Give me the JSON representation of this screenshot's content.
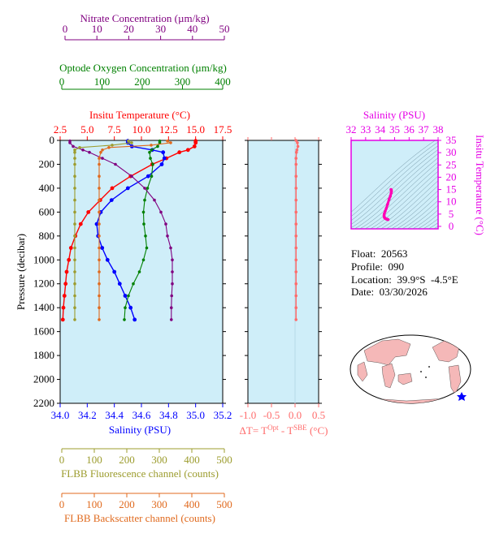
{
  "colors": {
    "temperature": "#ff0000",
    "salinity": "#0000ff",
    "oxygen": "#008000",
    "nitrate": "#800080",
    "fluorescence": "#9c9c2e",
    "backscatter": "#e06a1e",
    "delta_t": "#ff6b6b",
    "ts_curve": "#ff00b4",
    "ts_axis": "#e600e6",
    "plot_bg": "#cfeef9",
    "land": "#f5b8b8"
  },
  "float_info": {
    "float": "Float:  20563",
    "profile": "Profile:  090",
    "location": "Location:  39.9°S  -4.5°E",
    "date": "Date:  03/30/2026"
  },
  "chart_data": [
    {
      "type": "line",
      "panel": "main-profile",
      "ylabel": "Pressure (decibar)",
      "ylim": [
        2200,
        0
      ],
      "yticks": [
        0,
        200,
        400,
        600,
        800,
        1000,
        1200,
        1400,
        1600,
        1800,
        2000,
        2200
      ],
      "axes": {
        "nitrate": {
          "label": "Nitrate Concentration (µm/kg)",
          "lim": [
            0,
            50
          ],
          "ticks": [
            0,
            10,
            20,
            30,
            40,
            50
          ]
        },
        "oxygen": {
          "label": "Optode Oxygen Concentration (µm/kg)",
          "lim": [
            0,
            400
          ],
          "ticks": [
            0,
            100,
            200,
            300,
            400
          ]
        },
        "temperature": {
          "label": "Insitu Temperature (°C)",
          "lim": [
            2.5,
            17.5
          ],
          "ticks": [
            "2.5",
            "5.0",
            "7.5",
            "10.0",
            "12.5",
            "15.0",
            "17.5"
          ]
        },
        "salinity": {
          "label": "Salinity (PSU)",
          "lim": [
            34.0,
            35.2
          ],
          "ticks": [
            "34.0",
            "34.2",
            "34.4",
            "34.6",
            "34.8",
            "35.0",
            "35.2"
          ]
        },
        "fluorescence": {
          "label": "FLBB Fluorescence channel (counts)",
          "lim": [
            0,
            500
          ],
          "ticks": [
            0,
            100,
            200,
            300,
            400,
            500
          ]
        },
        "backscatter": {
          "label": "FLBB Backscatter channel (counts)",
          "lim": [
            0,
            500
          ],
          "ticks": [
            0,
            100,
            200,
            300,
            400,
            500
          ]
        }
      },
      "series": [
        {
          "name": "Insitu Temperature (°C)",
          "axis": "temperature",
          "pressure": [
            5,
            20,
            50,
            80,
            100,
            150,
            200,
            300,
            400,
            500,
            600,
            700,
            800,
            900,
            1000,
            1100,
            1200,
            1300,
            1400,
            1500
          ],
          "values": [
            15.0,
            15.0,
            14.9,
            14.3,
            13.5,
            12.3,
            11.0,
            9.0,
            7.3,
            6.2,
            5.1,
            4.4,
            3.9,
            3.5,
            3.3,
            3.1,
            3.0,
            2.9,
            2.8,
            2.75
          ]
        },
        {
          "name": "Salinity (PSU)",
          "axis": "salinity",
          "pressure": [
            5,
            20,
            50,
            80,
            100,
            150,
            200,
            300,
            400,
            500,
            600,
            700,
            800,
            900,
            1000,
            1100,
            1200,
            1300,
            1400,
            1500
          ],
          "values": [
            34.5,
            34.5,
            34.53,
            34.68,
            34.76,
            34.77,
            34.75,
            34.65,
            34.5,
            34.38,
            34.3,
            34.27,
            34.28,
            34.31,
            34.35,
            34.4,
            34.44,
            34.48,
            34.52,
            34.55
          ]
        },
        {
          "name": "Optode Oxygen Concentration (µm/kg)",
          "axis": "oxygen",
          "pressure": [
            5,
            20,
            50,
            80,
            100,
            150,
            200,
            300,
            400,
            500,
            600,
            700,
            800,
            900,
            1000,
            1100,
            1200,
            1300,
            1400,
            1500
          ],
          "values": [
            245,
            245,
            240,
            225,
            220,
            222,
            228,
            225,
            215,
            208,
            205,
            206,
            210,
            213,
            205,
            195,
            180,
            168,
            160,
            158
          ]
        },
        {
          "name": "Nitrate Concentration (µm/kg)",
          "axis": "nitrate",
          "pressure": [
            5,
            20,
            50,
            80,
            100,
            150,
            200,
            300,
            400,
            500,
            600,
            700,
            800,
            900,
            1000,
            1100,
            1200,
            1300,
            1400,
            1500
          ],
          "values": [
            3,
            3,
            4,
            7,
            9,
            13,
            17,
            22,
            26,
            29,
            31,
            32.5,
            33,
            34,
            34.5,
            34.5,
            34.5,
            34.3,
            34.2,
            34.2
          ]
        },
        {
          "name": "FLBB Fluorescence channel (counts)",
          "axis": "fluorescence",
          "pressure": [
            5,
            20,
            40,
            60,
            80,
            100,
            150,
            200,
            300,
            400,
            500,
            600,
            700,
            800,
            900,
            1000,
            1100,
            1200,
            1300,
            1400,
            1500
          ],
          "values": [
            210,
            220,
            160,
            60,
            45,
            45,
            45,
            45,
            45,
            45,
            45,
            45,
            45,
            45,
            45,
            45,
            45,
            45,
            45,
            45,
            45
          ]
        },
        {
          "name": "FLBB Backscatter channel (counts)",
          "axis": "backscatter",
          "pressure": [
            5,
            20,
            40,
            60,
            80,
            100,
            150,
            200,
            300,
            400,
            500,
            600,
            700,
            800,
            900,
            1000,
            1100,
            1200,
            1300,
            1400,
            1500
          ],
          "values": [
            330,
            340,
            280,
            150,
            130,
            125,
            120,
            120,
            120,
            120,
            120,
            120,
            120,
            120,
            120,
            120,
            120,
            120,
            120,
            120,
            120
          ]
        }
      ]
    },
    {
      "type": "line",
      "panel": "delta-t",
      "xlabel": "ΔT= T^Opt - T^SBE (°C)",
      "xlim": [
        -1.0,
        0.5
      ],
      "xticks": [
        "-1.0",
        "-0.5",
        "0.0",
        "0.5"
      ],
      "series": [
        {
          "pressure": [
            0,
            20,
            50,
            80,
            100,
            150,
            200,
            300,
            400,
            500,
            600,
            700,
            800,
            900,
            1000,
            1100,
            1200,
            1300,
            1400,
            1500
          ],
          "values": [
            0.02,
            0.05,
            0.06,
            0.04,
            0.03,
            0.02,
            0.02,
            0.02,
            0.02,
            0.02,
            0.02,
            0.02,
            0.02,
            0.02,
            0.02,
            0.02,
            0.02,
            0.02,
            0.02,
            0.02
          ]
        }
      ]
    },
    {
      "type": "scatter",
      "panel": "ts-diagram",
      "xlabel": "Salinity (PSU)",
      "ylabel": "Insitu Temperature (°C)",
      "xlim": [
        32,
        38
      ],
      "ylim": [
        -1,
        35
      ],
      "xticks": [
        32,
        33,
        34,
        35,
        36,
        37,
        38
      ],
      "yticks": [
        0,
        5,
        10,
        15,
        20,
        25,
        30,
        35
      ],
      "series": [
        {
          "salinity": [
            34.75,
            34.77,
            34.78,
            34.76,
            34.7,
            34.62,
            34.52,
            34.42,
            34.35,
            34.29,
            34.27,
            34.28,
            34.31,
            34.35,
            34.4,
            34.44,
            34.48,
            34.52,
            34.55
          ],
          "temperature": [
            15.0,
            14.9,
            14.3,
            13.5,
            12.3,
            11.0,
            9.0,
            7.3,
            6.2,
            5.1,
            4.4,
            3.9,
            3.5,
            3.3,
            3.1,
            3.0,
            2.9,
            2.8,
            2.75
          ]
        }
      ]
    }
  ]
}
